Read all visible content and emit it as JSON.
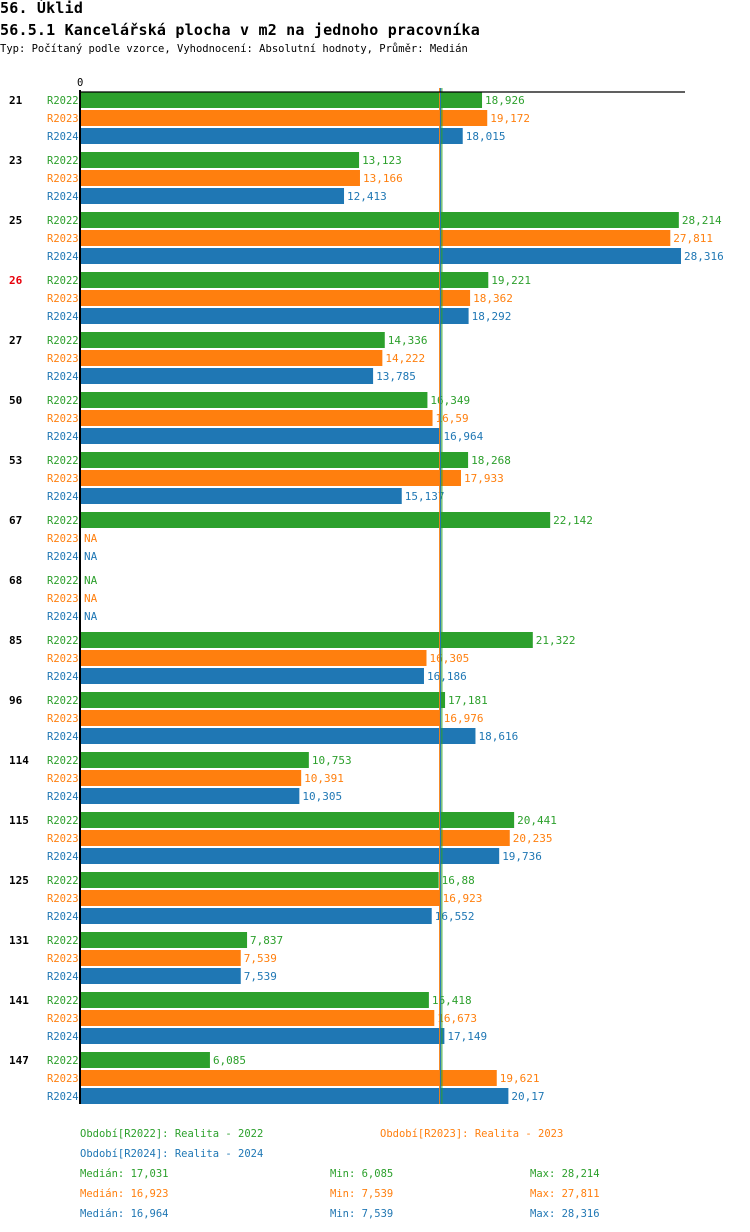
{
  "page": {
    "section_title": "56. Úklid",
    "chart_title": "56.5.1 Kancelářská plocha v m2 na jednoho pracovníka",
    "subtitle": "Typ: Počítaný podle vzorce, Vyhodnocení: Absolutní hodnoty, Průměr: Medián"
  },
  "chart_data": {
    "type": "bar",
    "orientation": "horizontal",
    "title": "56.5.1 Kancelářská plocha v m2 na jednoho pracovníka",
    "xlabel": "",
    "ylabel": "",
    "axis_zero_label": "0",
    "xlim": [
      0,
      28316
    ],
    "grid": false,
    "highlighted_category": "26",
    "highlight_color": "#e8000b",
    "categories": [
      "21",
      "23",
      "25",
      "26",
      "27",
      "50",
      "53",
      "67",
      "68",
      "85",
      "96",
      "114",
      "115",
      "125",
      "131",
      "141",
      "147"
    ],
    "series": [
      {
        "name": "R2022",
        "color": "#2ca02c",
        "values": [
          18.926,
          13.123,
          28.214,
          19.221,
          14.336,
          16.349,
          18.268,
          22.142,
          null,
          21.322,
          17.181,
          10.753,
          20.441,
          16.88,
          7.837,
          16.418,
          6.085
        ],
        "labels": [
          "18,926",
          "13,123",
          "28,214",
          "19,221",
          "14,336",
          "16,349",
          "18,268",
          "22,142",
          "NA",
          "21,322",
          "17,181",
          "10,753",
          "20,441",
          "16,88",
          "7,837",
          "16,418",
          "6,085"
        ]
      },
      {
        "name": "R2023",
        "color": "#ff7f0e",
        "values": [
          19.172,
          13.166,
          27.811,
          18.362,
          14.222,
          16.59,
          17.933,
          null,
          null,
          16.305,
          16.976,
          10.391,
          20.235,
          16.923,
          7.539,
          16.673,
          19.621
        ],
        "labels": [
          "19,172",
          "13,166",
          "27,811",
          "18,362",
          "14,222",
          "16,59",
          "17,933",
          "NA",
          "NA",
          "16,305",
          "16,976",
          "10,391",
          "20,235",
          "16,923",
          "7,539",
          "16,673",
          "19,621"
        ]
      },
      {
        "name": "R2024",
        "color": "#1f77b4",
        "values": [
          18.015,
          12.413,
          28.316,
          18.292,
          13.785,
          16.964,
          15.137,
          null,
          null,
          16.186,
          18.616,
          10.305,
          19.736,
          16.552,
          7.539,
          17.149,
          20.17
        ],
        "labels": [
          "18,015",
          "12,413",
          "28,316",
          "18,292",
          "13,785",
          "16,964",
          "15,137",
          "NA",
          "NA",
          "16,186",
          "18,616",
          "10,305",
          "19,736",
          "16,552",
          "7,539",
          "17,149",
          "20,17"
        ]
      }
    ],
    "median_lines": [
      {
        "series": "R2022",
        "value": 17.031
      },
      {
        "series": "R2023",
        "value": 16.923
      },
      {
        "series": "R2024",
        "value": 16.964
      }
    ],
    "axis_color": "#000000"
  },
  "legend": {
    "periods": [
      {
        "text": "Období[R2022]: Realita - 2022",
        "color": "#2ca02c"
      },
      {
        "text": "Období[R2023]: Realita - 2023",
        "color": "#ff7f0e"
      },
      {
        "text": "Období[R2024]: Realita - 2024",
        "color": "#1f77b4"
      }
    ],
    "stats": [
      {
        "median": "Medián: 17,031",
        "min": "Min: 6,085",
        "max": "Max: 28,214",
        "color": "#2ca02c"
      },
      {
        "median": "Medián: 16,923",
        "min": "Min: 7,539",
        "max": "Max: 27,811",
        "color": "#ff7f0e"
      },
      {
        "median": "Medián: 16,964",
        "min": "Min: 7,539",
        "max": "Max: 28,316",
        "color": "#1f77b4"
      }
    ]
  }
}
